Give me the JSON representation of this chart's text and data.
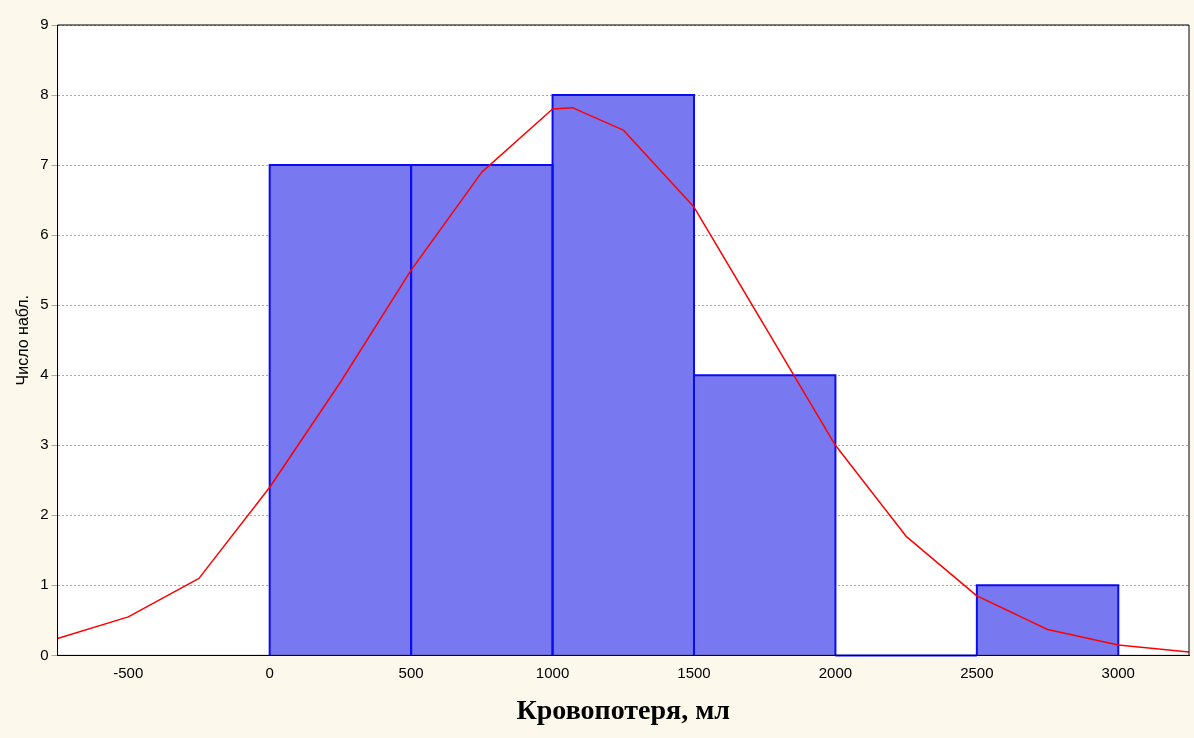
{
  "chart_data": {
    "type": "histogram",
    "xlabel": "Кровопотеря, мл",
    "ylabel": "Число набл.",
    "bins": [
      0,
      500,
      1000,
      1500,
      2000,
      2500,
      3000
    ],
    "series": [
      {
        "color": "#7878f0",
        "values": [
          7,
          7,
          8,
          4,
          0,
          1
        ]
      },
      {
        "type": "line",
        "color": "#ff0000",
        "x": [
          -750,
          -500,
          -250,
          0,
          250,
          500,
          750,
          1000,
          1070,
          1250,
          1500,
          1750,
          2000,
          2250,
          2500,
          2750,
          3000,
          3250
        ],
        "values": [
          0.24,
          0.55,
          1.1,
          2.4,
          3.9,
          5.5,
          6.9,
          7.8,
          7.82,
          7.5,
          6.4,
          4.7,
          3.0,
          1.7,
          0.85,
          0.37,
          0.15,
          0.05
        ]
      }
    ],
    "xlim": [
      -750,
      3250
    ],
    "xticks": [
      -500,
      0,
      500,
      1000,
      1500,
      2000,
      2500,
      3000
    ],
    "ylim": [
      0,
      9
    ],
    "yticks": [
      0,
      1,
      2,
      3,
      4,
      5,
      6,
      7,
      8,
      9
    ],
    "grid": "y",
    "marker": "none",
    "legend": false
  }
}
